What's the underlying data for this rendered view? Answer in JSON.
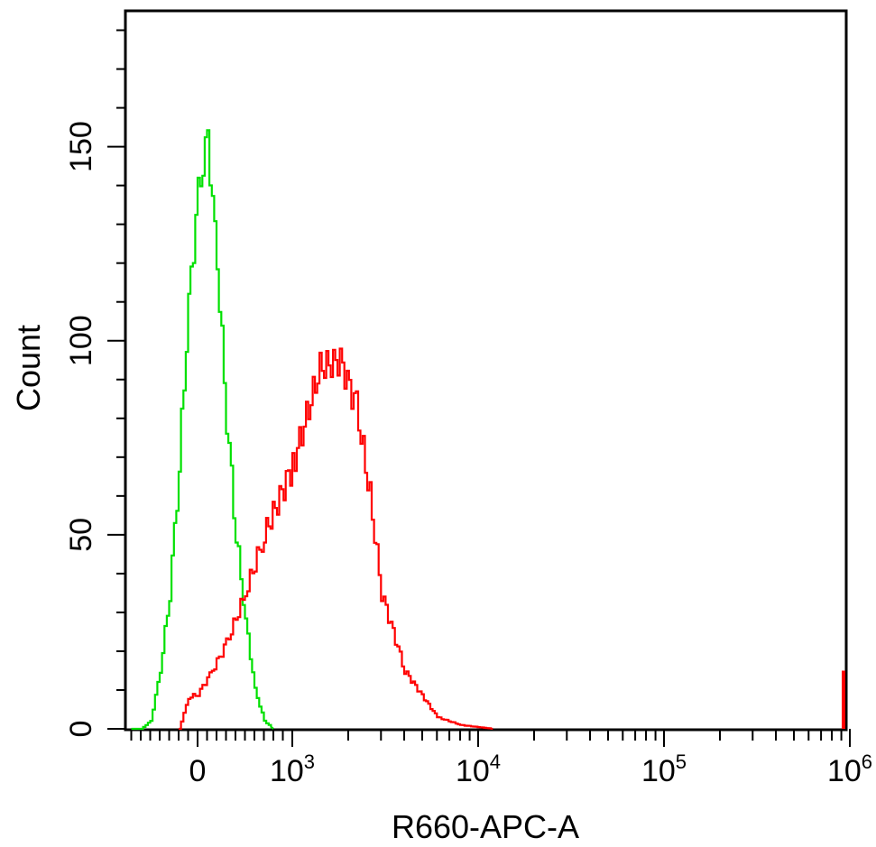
{
  "chart_data": {
    "type": "line",
    "title": "",
    "xlabel": "R660-APC-A",
    "ylabel": "Count",
    "x_scale": "biexponential",
    "ylim": [
      0,
      185
    ],
    "x_ticks": [
      {
        "base": "0",
        "exp": ""
      },
      {
        "base": "10",
        "exp": "3"
      },
      {
        "base": "10",
        "exp": "4"
      },
      {
        "base": "10",
        "exp": "5"
      },
      {
        "base": "10",
        "exp": "6"
      }
    ],
    "y_ticks": [
      "0",
      "50",
      "100",
      "150"
    ],
    "y_tick_values": [
      0,
      50,
      100,
      150
    ],
    "colors": {
      "unstained": "#00e000",
      "stained": "#ff0000",
      "axis": "#000000"
    },
    "grid": false,
    "legend": "none",
    "series": [
      {
        "color": "#00e000",
        "x": [
          -700,
          -600,
          -500,
          -400,
          -300,
          -200,
          -100,
          0,
          100,
          200,
          300,
          400,
          500,
          600,
          700,
          800
        ],
        "y": [
          0,
          0,
          2,
          15,
          35,
          68,
          110,
          138,
          152,
          120,
          80,
          50,
          28,
          10,
          2,
          0
        ]
      },
      {
        "color": "#ff0000",
        "x": [
          -200,
          -100,
          0,
          150,
          300,
          500,
          700,
          1000,
          1400,
          1800,
          2200,
          2600,
          3000,
          4000,
          6000,
          8000,
          12000
        ],
        "y": [
          0,
          8,
          9,
          15,
          22,
          35,
          50,
          68,
          93,
          95,
          83,
          60,
          35,
          15,
          3,
          1,
          0
        ]
      }
    ]
  }
}
